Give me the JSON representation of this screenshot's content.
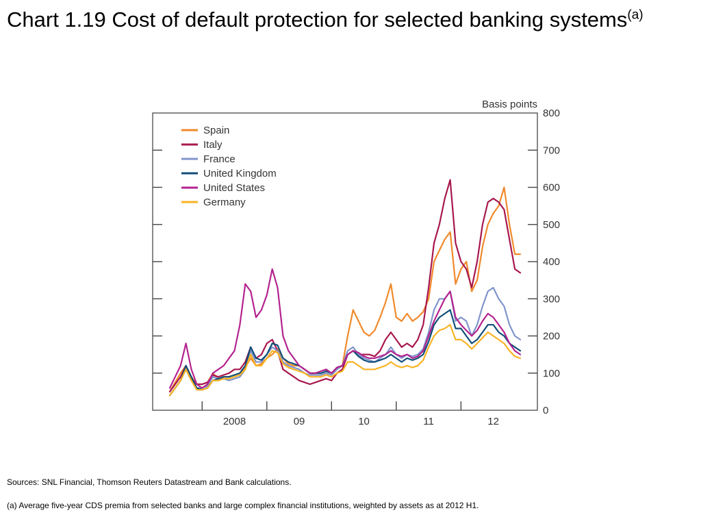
{
  "slide": {
    "title_main": "Chart 1.19  Cost of default protection for selected banking systems",
    "title_note": "(a)",
    "sources": "Sources:  SNL Financial, Thomson Reuters Datastream and Bank calculations.",
    "footnote": "(a)  Average five-year CDS premia from selected banks and large complex financial institutions, weighted by assets as at 2012 H1."
  },
  "chart_data": {
    "type": "line",
    "title": "Chart 1.19  Cost of default protection for selected banking systems",
    "ylabel": "Basis points",
    "xlabel": "",
    "ylim": [
      0,
      800
    ],
    "y_ticks": [
      0,
      100,
      200,
      300,
      400,
      500,
      600,
      700,
      800
    ],
    "y_tick_labels": [
      "0",
      "100",
      "200",
      "300",
      "400",
      "500",
      "600",
      "700",
      "800"
    ],
    "xlim": [
      "2007-07",
      "2012-12"
    ],
    "x_tick_labels": [
      "2008",
      "09",
      "10",
      "11",
      "12"
    ],
    "x_tick_marks": [
      "2008-01",
      "2009-01",
      "2010-01",
      "2011-01",
      "2012-01"
    ],
    "grid": false,
    "legend_position": "top-left",
    "x": [
      "2007-07",
      "2007-08",
      "2007-09",
      "2007-10",
      "2007-11",
      "2007-12",
      "2008-01",
      "2008-02",
      "2008-03",
      "2008-04",
      "2008-05",
      "2008-06",
      "2008-07",
      "2008-08",
      "2008-09",
      "2008-10",
      "2008-11",
      "2008-12",
      "2009-01",
      "2009-02",
      "2009-03",
      "2009-04",
      "2009-05",
      "2009-06",
      "2009-07",
      "2009-08",
      "2009-09",
      "2009-10",
      "2009-11",
      "2009-12",
      "2010-01",
      "2010-02",
      "2010-03",
      "2010-04",
      "2010-05",
      "2010-06",
      "2010-07",
      "2010-08",
      "2010-09",
      "2010-10",
      "2010-11",
      "2010-12",
      "2011-01",
      "2011-02",
      "2011-03",
      "2011-04",
      "2011-05",
      "2011-06",
      "2011-07",
      "2011-08",
      "2011-09",
      "2011-10",
      "2011-11",
      "2011-12",
      "2012-01",
      "2012-02",
      "2012-03",
      "2012-04",
      "2012-05",
      "2012-06",
      "2012-07",
      "2012-08",
      "2012-09",
      "2012-10",
      "2012-11",
      "2012-12"
    ],
    "series": [
      {
        "name": "Spain",
        "color": "#F0892B",
        "values": [
          50,
          75,
          100,
          120,
          90,
          70,
          70,
          75,
          100,
          85,
          90,
          90,
          95,
          100,
          115,
          140,
          120,
          125,
          140,
          150,
          165,
          140,
          125,
          120,
          120,
          110,
          100,
          95,
          95,
          100,
          95,
          110,
          120,
          200,
          270,
          240,
          210,
          200,
          215,
          250,
          290,
          340,
          250,
          240,
          260,
          240,
          250,
          265,
          300,
          400,
          430,
          460,
          480,
          340,
          380,
          400,
          320,
          350,
          440,
          500,
          530,
          550,
          600,
          500,
          420,
          420
        ]
      },
      {
        "name": "Italy",
        "color": "#A8174E",
        "values": [
          50,
          70,
          90,
          120,
          85,
          70,
          70,
          75,
          95,
          90,
          95,
          100,
          110,
          110,
          130,
          170,
          140,
          150,
          180,
          190,
          160,
          110,
          100,
          90,
          80,
          75,
          70,
          75,
          80,
          85,
          80,
          100,
          110,
          150,
          160,
          150,
          150,
          150,
          145,
          160,
          190,
          210,
          190,
          170,
          180,
          170,
          190,
          230,
          330,
          450,
          500,
          570,
          620,
          450,
          400,
          380,
          330,
          400,
          500,
          560,
          570,
          560,
          540,
          460,
          380,
          370
        ]
      },
      {
        "name": "France",
        "color": "#8095CC",
        "values": [
          40,
          60,
          80,
          110,
          80,
          60,
          60,
          65,
          90,
          85,
          85,
          80,
          85,
          90,
          110,
          160,
          130,
          130,
          150,
          170,
          160,
          130,
          120,
          115,
          110,
          100,
          95,
          95,
          95,
          100,
          95,
          110,
          120,
          160,
          170,
          150,
          140,
          135,
          130,
          140,
          150,
          170,
          150,
          140,
          150,
          145,
          150,
          165,
          210,
          270,
          300,
          300,
          320,
          240,
          250,
          240,
          200,
          230,
          280,
          320,
          330,
          300,
          280,
          230,
          200,
          190
        ]
      },
      {
        "name": "United Kingdom",
        "color": "#104E78",
        "values": [
          40,
          60,
          80,
          120,
          90,
          60,
          55,
          60,
          80,
          85,
          90,
          90,
          95,
          100,
          120,
          170,
          140,
          135,
          150,
          180,
          175,
          140,
          130,
          125,
          120,
          110,
          100,
          100,
          100,
          105,
          100,
          115,
          120,
          150,
          160,
          145,
          135,
          130,
          130,
          135,
          140,
          150,
          140,
          130,
          140,
          135,
          140,
          150,
          185,
          230,
          250,
          260,
          270,
          220,
          220,
          200,
          180,
          190,
          210,
          230,
          230,
          210,
          200,
          180,
          170,
          160
        ]
      },
      {
        "name": "United States",
        "color": "#B3238F",
        "values": [
          60,
          90,
          120,
          180,
          110,
          70,
          60,
          70,
          100,
          110,
          120,
          140,
          160,
          230,
          340,
          320,
          250,
          270,
          310,
          380,
          330,
          200,
          160,
          140,
          120,
          110,
          100,
          100,
          105,
          110,
          100,
          115,
          120,
          150,
          160,
          155,
          145,
          140,
          140,
          145,
          150,
          160,
          150,
          145,
          150,
          140,
          145,
          160,
          200,
          240,
          270,
          300,
          320,
          250,
          230,
          215,
          200,
          215,
          240,
          260,
          250,
          230,
          210,
          180,
          160,
          150
        ]
      },
      {
        "name": "Germany",
        "color": "#F9B324",
        "values": [
          40,
          60,
          80,
          110,
          80,
          55,
          55,
          60,
          80,
          80,
          85,
          85,
          90,
          95,
          110,
          150,
          120,
          120,
          140,
          160,
          155,
          125,
          115,
          110,
          105,
          100,
          90,
          90,
          90,
          95,
          90,
          100,
          105,
          130,
          130,
          120,
          110,
          110,
          110,
          115,
          120,
          130,
          120,
          115,
          120,
          115,
          120,
          135,
          170,
          200,
          215,
          220,
          230,
          190,
          190,
          180,
          165,
          180,
          195,
          210,
          200,
          190,
          180,
          160,
          145,
          140
        ]
      }
    ]
  }
}
